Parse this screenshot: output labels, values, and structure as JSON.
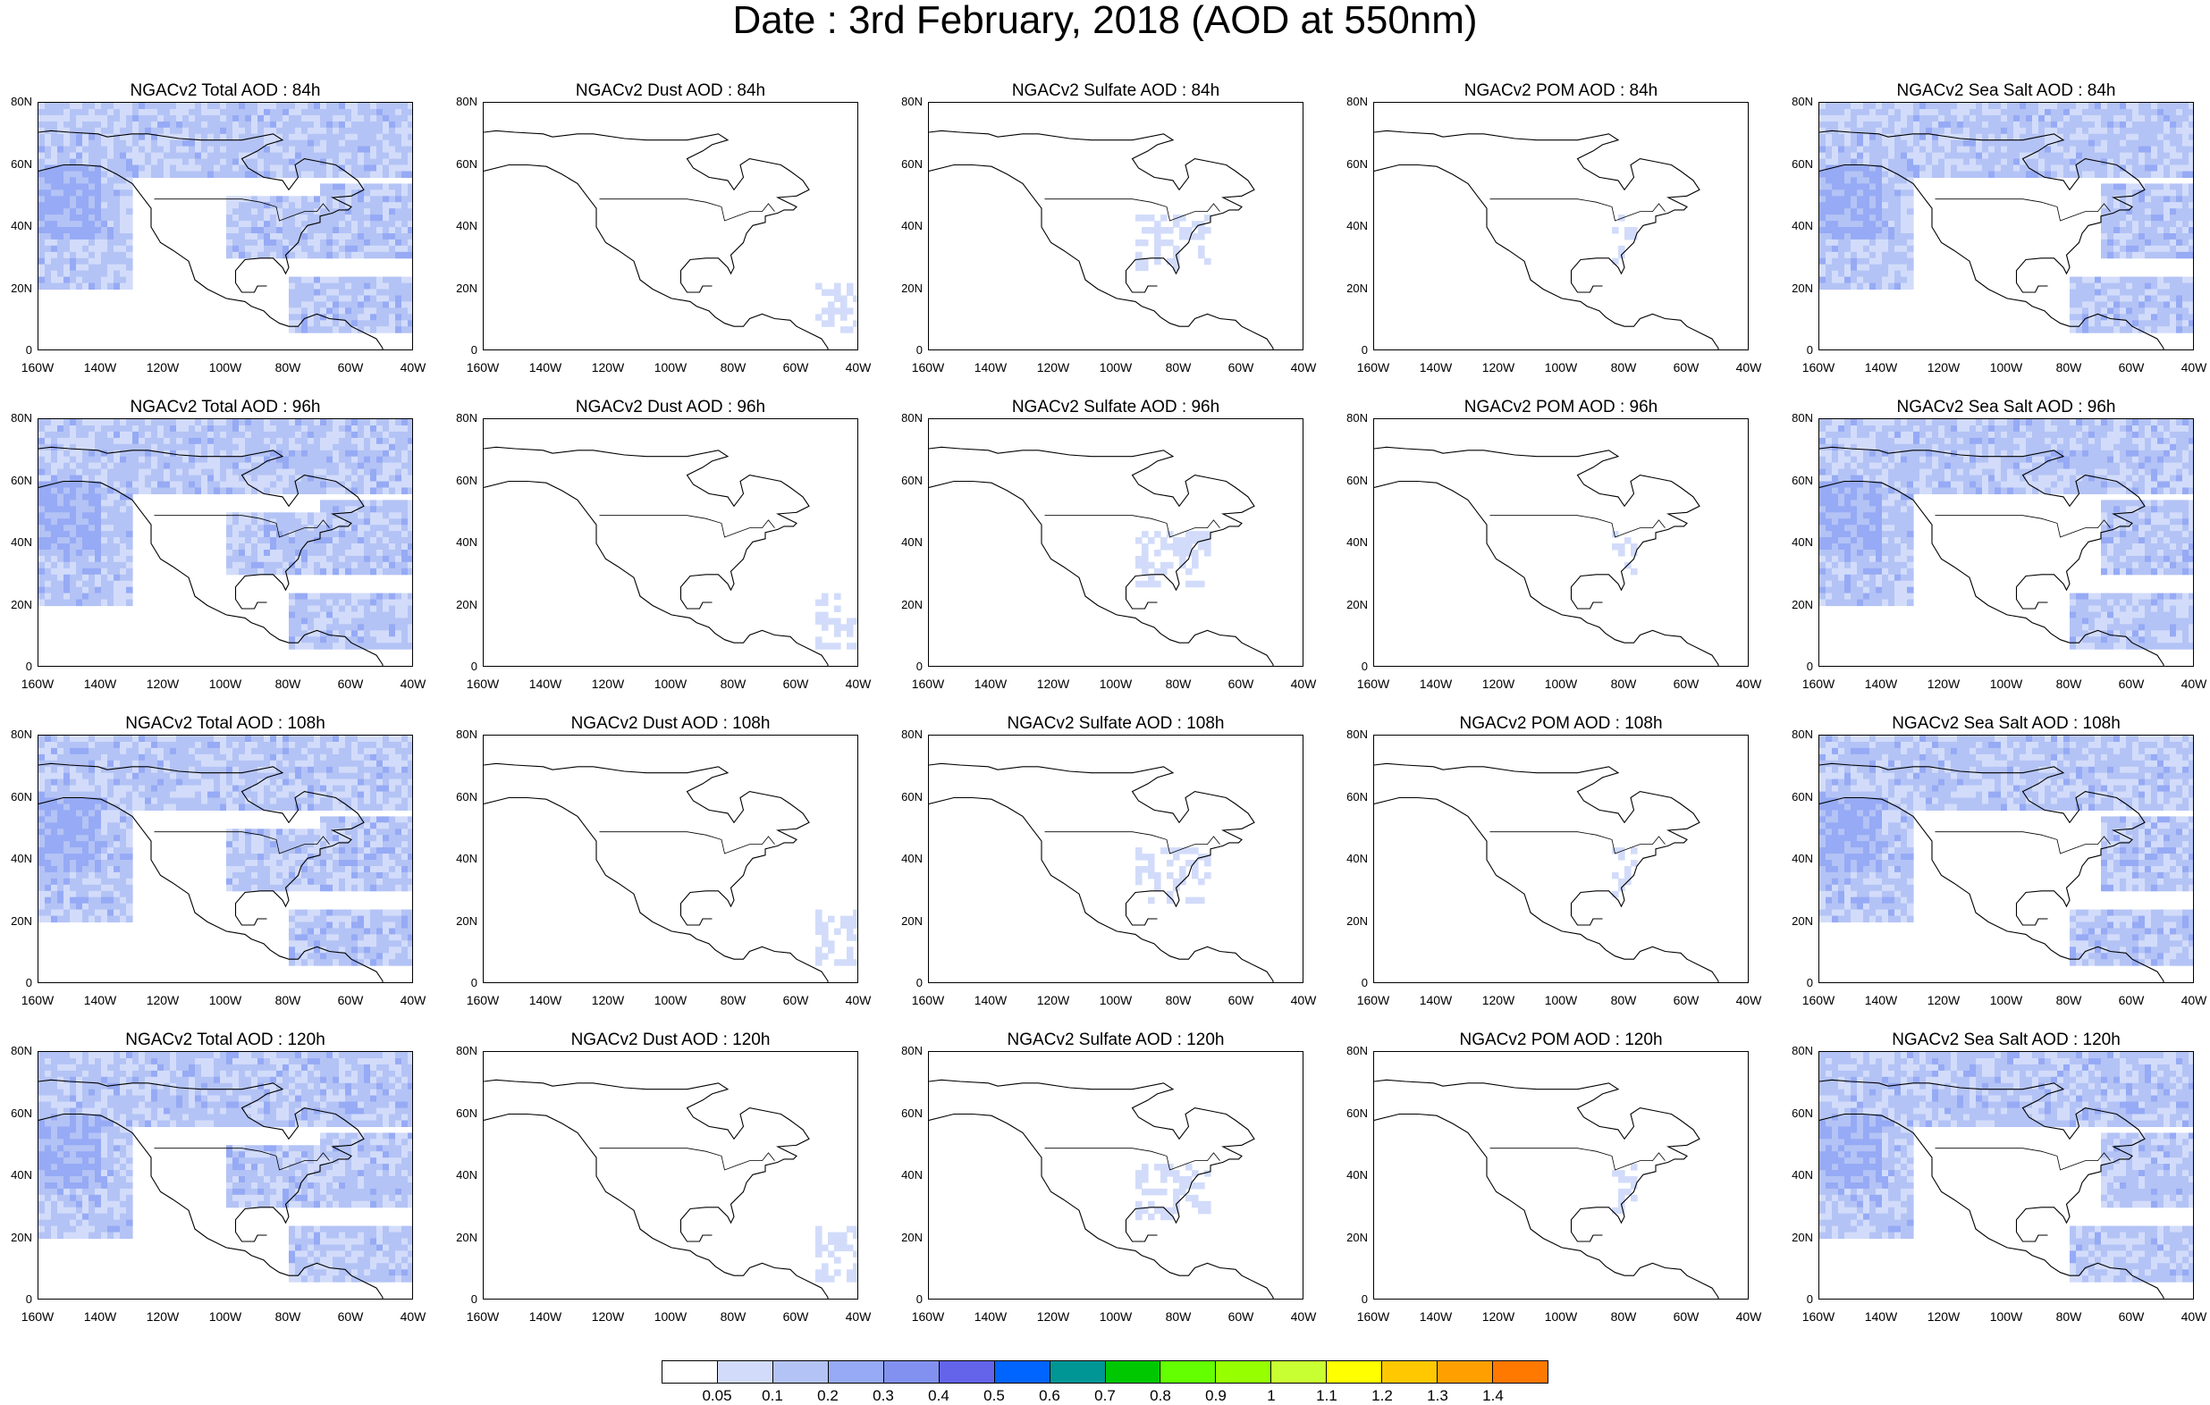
{
  "title": "Date : 3rd February, 2018 (AOD at 550nm)",
  "axes": {
    "lat_labels": [
      "80N",
      "60N",
      "40N",
      "20N",
      "0"
    ],
    "lon_labels": [
      "160W",
      "140W",
      "120W",
      "100W",
      "80W",
      "60W",
      "40W"
    ],
    "lat_range": [
      0,
      80
    ],
    "lon_range": [
      -160,
      -40
    ]
  },
  "panels": [
    {
      "title": "NGACv2 Total AOD : 84h",
      "species": "total",
      "hour": 84
    },
    {
      "title": "NGACv2 Dust AOD : 84h",
      "species": "dust",
      "hour": 84
    },
    {
      "title": "NGACv2 Sulfate AOD : 84h",
      "species": "sulfate",
      "hour": 84
    },
    {
      "title": "NGACv2 POM AOD : 84h",
      "species": "pom",
      "hour": 84
    },
    {
      "title": "NGACv2 Sea Salt AOD : 84h",
      "species": "seasalt",
      "hour": 84
    },
    {
      "title": "NGACv2 Total AOD : 96h",
      "species": "total",
      "hour": 96
    },
    {
      "title": "NGACv2 Dust AOD : 96h",
      "species": "dust",
      "hour": 96
    },
    {
      "title": "NGACv2 Sulfate AOD : 96h",
      "species": "sulfate",
      "hour": 96
    },
    {
      "title": "NGACv2 POM AOD : 96h",
      "species": "pom",
      "hour": 96
    },
    {
      "title": "NGACv2 Sea Salt AOD : 96h",
      "species": "seasalt",
      "hour": 96
    },
    {
      "title": "NGACv2 Total AOD : 108h",
      "species": "total",
      "hour": 108
    },
    {
      "title": "NGACv2 Dust AOD : 108h",
      "species": "dust",
      "hour": 108
    },
    {
      "title": "NGACv2 Sulfate AOD : 108h",
      "species": "sulfate",
      "hour": 108
    },
    {
      "title": "NGACv2 POM AOD : 108h",
      "species": "pom",
      "hour": 108
    },
    {
      "title": "NGACv2 Sea Salt AOD : 108h",
      "species": "seasalt",
      "hour": 108
    },
    {
      "title": "NGACv2 Total AOD : 120h",
      "species": "total",
      "hour": 120
    },
    {
      "title": "NGACv2 Dust AOD : 120h",
      "species": "dust",
      "hour": 120
    },
    {
      "title": "NGACv2 Sulfate AOD : 120h",
      "species": "sulfate",
      "hour": 120
    },
    {
      "title": "NGACv2 POM AOD : 120h",
      "species": "pom",
      "hour": 120
    },
    {
      "title": "NGACv2 Sea Salt  AOD : 120h",
      "species": "seasalt",
      "hour": 120
    }
  ],
  "colorbar": {
    "labels": [
      "0.05",
      "0.1",
      "0.2",
      "0.3",
      "0.4",
      "0.5",
      "0.6",
      "0.7",
      "0.8",
      "0.9",
      "1",
      "1.1",
      "1.2",
      "1.3",
      "1.4"
    ],
    "colors": [
      "#ffffff",
      "#d2dcfa",
      "#b4c3f5",
      "#96aaf5",
      "#8291f0",
      "#6464eb",
      "#0064ff",
      "#009696",
      "#00c800",
      "#64ff00",
      "#96ff00",
      "#c8ff32",
      "#ffff00",
      "#ffc800",
      "#ffa000",
      "#ff7800",
      "#ff2800"
    ]
  }
}
